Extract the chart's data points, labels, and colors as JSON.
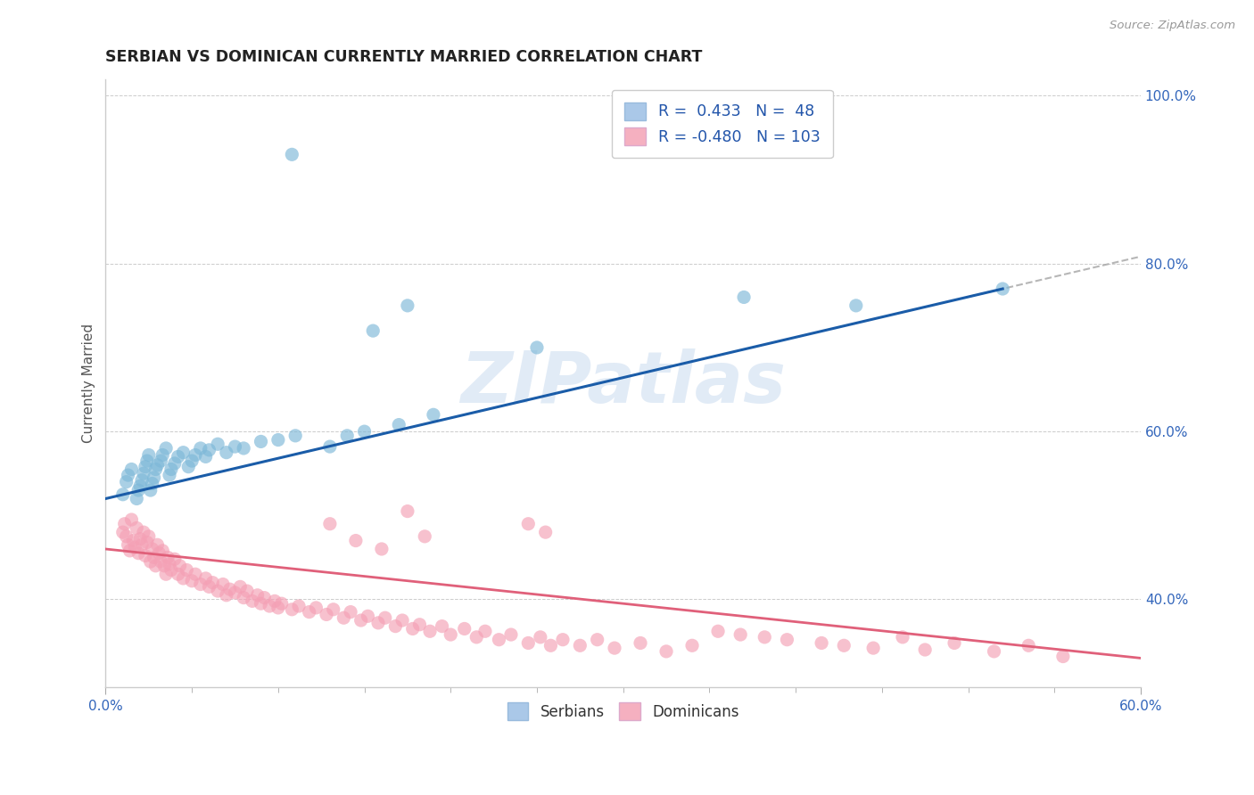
{
  "title": "SERBIAN VS DOMINICAN CURRENTLY MARRIED CORRELATION CHART",
  "source_text": "Source: ZipAtlas.com",
  "ylabel": "Currently Married",
  "xlim": [
    0.0,
    0.6
  ],
  "ylim": [
    0.295,
    1.02
  ],
  "ytick_labels": [
    "40.0%",
    "60.0%",
    "80.0%",
    "100.0%"
  ],
  "ytick_vals": [
    0.4,
    0.6,
    0.8,
    1.0
  ],
  "xtick_labels": [
    "0.0%",
    "60.0%"
  ],
  "xtick_vals": [
    0.0,
    0.6
  ],
  "watermark": "ZIPatlas",
  "serbian_color": "#7db8d8",
  "dominican_color": "#f4a0b5",
  "serbian_line_color": "#1a5ca8",
  "dominican_line_color": "#e0607a",
  "serbian_legend_color": "#aac8e8",
  "dominican_legend_color": "#f5b0c0",
  "legend_text_color": "#2255aa",
  "serbian_points": [
    [
      0.01,
      0.525
    ],
    [
      0.012,
      0.54
    ],
    [
      0.013,
      0.548
    ],
    [
      0.015,
      0.555
    ],
    [
      0.018,
      0.52
    ],
    [
      0.019,
      0.53
    ],
    [
      0.02,
      0.535
    ],
    [
      0.021,
      0.542
    ],
    [
      0.022,
      0.55
    ],
    [
      0.023,
      0.558
    ],
    [
      0.024,
      0.565
    ],
    [
      0.025,
      0.572
    ],
    [
      0.026,
      0.53
    ],
    [
      0.027,
      0.538
    ],
    [
      0.028,
      0.545
    ],
    [
      0.029,
      0.555
    ],
    [
      0.03,
      0.56
    ],
    [
      0.032,
      0.565
    ],
    [
      0.033,
      0.572
    ],
    [
      0.035,
      0.58
    ],
    [
      0.037,
      0.548
    ],
    [
      0.038,
      0.555
    ],
    [
      0.04,
      0.562
    ],
    [
      0.042,
      0.57
    ],
    [
      0.045,
      0.575
    ],
    [
      0.048,
      0.558
    ],
    [
      0.05,
      0.565
    ],
    [
      0.052,
      0.572
    ],
    [
      0.055,
      0.58
    ],
    [
      0.058,
      0.57
    ],
    [
      0.06,
      0.578
    ],
    [
      0.065,
      0.585
    ],
    [
      0.07,
      0.575
    ],
    [
      0.075,
      0.582
    ],
    [
      0.08,
      0.58
    ],
    [
      0.09,
      0.588
    ],
    [
      0.1,
      0.59
    ],
    [
      0.11,
      0.595
    ],
    [
      0.13,
      0.582
    ],
    [
      0.14,
      0.595
    ],
    [
      0.15,
      0.6
    ],
    [
      0.17,
      0.608
    ],
    [
      0.19,
      0.62
    ],
    [
      0.155,
      0.72
    ],
    [
      0.175,
      0.75
    ],
    [
      0.25,
      0.7
    ],
    [
      0.37,
      0.76
    ],
    [
      0.435,
      0.75
    ],
    [
      0.52,
      0.77
    ],
    [
      0.108,
      0.93
    ]
  ],
  "dominican_points": [
    [
      0.01,
      0.48
    ],
    [
      0.011,
      0.49
    ],
    [
      0.012,
      0.475
    ],
    [
      0.013,
      0.465
    ],
    [
      0.014,
      0.458
    ],
    [
      0.015,
      0.495
    ],
    [
      0.016,
      0.47
    ],
    [
      0.017,
      0.462
    ],
    [
      0.018,
      0.485
    ],
    [
      0.019,
      0.455
    ],
    [
      0.02,
      0.472
    ],
    [
      0.021,
      0.465
    ],
    [
      0.022,
      0.48
    ],
    [
      0.023,
      0.452
    ],
    [
      0.024,
      0.468
    ],
    [
      0.025,
      0.475
    ],
    [
      0.026,
      0.445
    ],
    [
      0.027,
      0.46
    ],
    [
      0.028,
      0.45
    ],
    [
      0.029,
      0.44
    ],
    [
      0.03,
      0.465
    ],
    [
      0.031,
      0.455
    ],
    [
      0.032,
      0.445
    ],
    [
      0.033,
      0.458
    ],
    [
      0.034,
      0.44
    ],
    [
      0.035,
      0.43
    ],
    [
      0.036,
      0.45
    ],
    [
      0.037,
      0.442
    ],
    [
      0.038,
      0.435
    ],
    [
      0.04,
      0.448
    ],
    [
      0.042,
      0.43
    ],
    [
      0.043,
      0.44
    ],
    [
      0.045,
      0.425
    ],
    [
      0.047,
      0.435
    ],
    [
      0.05,
      0.422
    ],
    [
      0.052,
      0.43
    ],
    [
      0.055,
      0.418
    ],
    [
      0.058,
      0.425
    ],
    [
      0.06,
      0.415
    ],
    [
      0.062,
      0.42
    ],
    [
      0.065,
      0.41
    ],
    [
      0.068,
      0.418
    ],
    [
      0.07,
      0.405
    ],
    [
      0.072,
      0.412
    ],
    [
      0.075,
      0.408
    ],
    [
      0.078,
      0.415
    ],
    [
      0.08,
      0.402
    ],
    [
      0.082,
      0.41
    ],
    [
      0.085,
      0.398
    ],
    [
      0.088,
      0.405
    ],
    [
      0.09,
      0.395
    ],
    [
      0.092,
      0.402
    ],
    [
      0.095,
      0.392
    ],
    [
      0.098,
      0.398
    ],
    [
      0.1,
      0.39
    ],
    [
      0.102,
      0.395
    ],
    [
      0.108,
      0.388
    ],
    [
      0.112,
      0.392
    ],
    [
      0.118,
      0.385
    ],
    [
      0.122,
      0.39
    ],
    [
      0.128,
      0.382
    ],
    [
      0.132,
      0.388
    ],
    [
      0.138,
      0.378
    ],
    [
      0.142,
      0.385
    ],
    [
      0.148,
      0.375
    ],
    [
      0.152,
      0.38
    ],
    [
      0.158,
      0.372
    ],
    [
      0.162,
      0.378
    ],
    [
      0.168,
      0.368
    ],
    [
      0.172,
      0.375
    ],
    [
      0.178,
      0.365
    ],
    [
      0.182,
      0.37
    ],
    [
      0.188,
      0.362
    ],
    [
      0.195,
      0.368
    ],
    [
      0.2,
      0.358
    ],
    [
      0.208,
      0.365
    ],
    [
      0.215,
      0.355
    ],
    [
      0.22,
      0.362
    ],
    [
      0.228,
      0.352
    ],
    [
      0.235,
      0.358
    ],
    [
      0.245,
      0.348
    ],
    [
      0.252,
      0.355
    ],
    [
      0.258,
      0.345
    ],
    [
      0.265,
      0.352
    ],
    [
      0.13,
      0.49
    ],
    [
      0.145,
      0.47
    ],
    [
      0.16,
      0.46
    ],
    [
      0.175,
      0.505
    ],
    [
      0.185,
      0.475
    ],
    [
      0.245,
      0.49
    ],
    [
      0.255,
      0.48
    ],
    [
      0.275,
      0.345
    ],
    [
      0.285,
      0.352
    ],
    [
      0.295,
      0.342
    ],
    [
      0.31,
      0.348
    ],
    [
      0.325,
      0.338
    ],
    [
      0.34,
      0.345
    ],
    [
      0.355,
      0.362
    ],
    [
      0.368,
      0.358
    ],
    [
      0.382,
      0.355
    ],
    [
      0.395,
      0.352
    ],
    [
      0.415,
      0.348
    ],
    [
      0.428,
      0.345
    ],
    [
      0.445,
      0.342
    ],
    [
      0.462,
      0.355
    ],
    [
      0.475,
      0.34
    ],
    [
      0.492,
      0.348
    ],
    [
      0.515,
      0.338
    ],
    [
      0.535,
      0.345
    ],
    [
      0.555,
      0.332
    ]
  ]
}
